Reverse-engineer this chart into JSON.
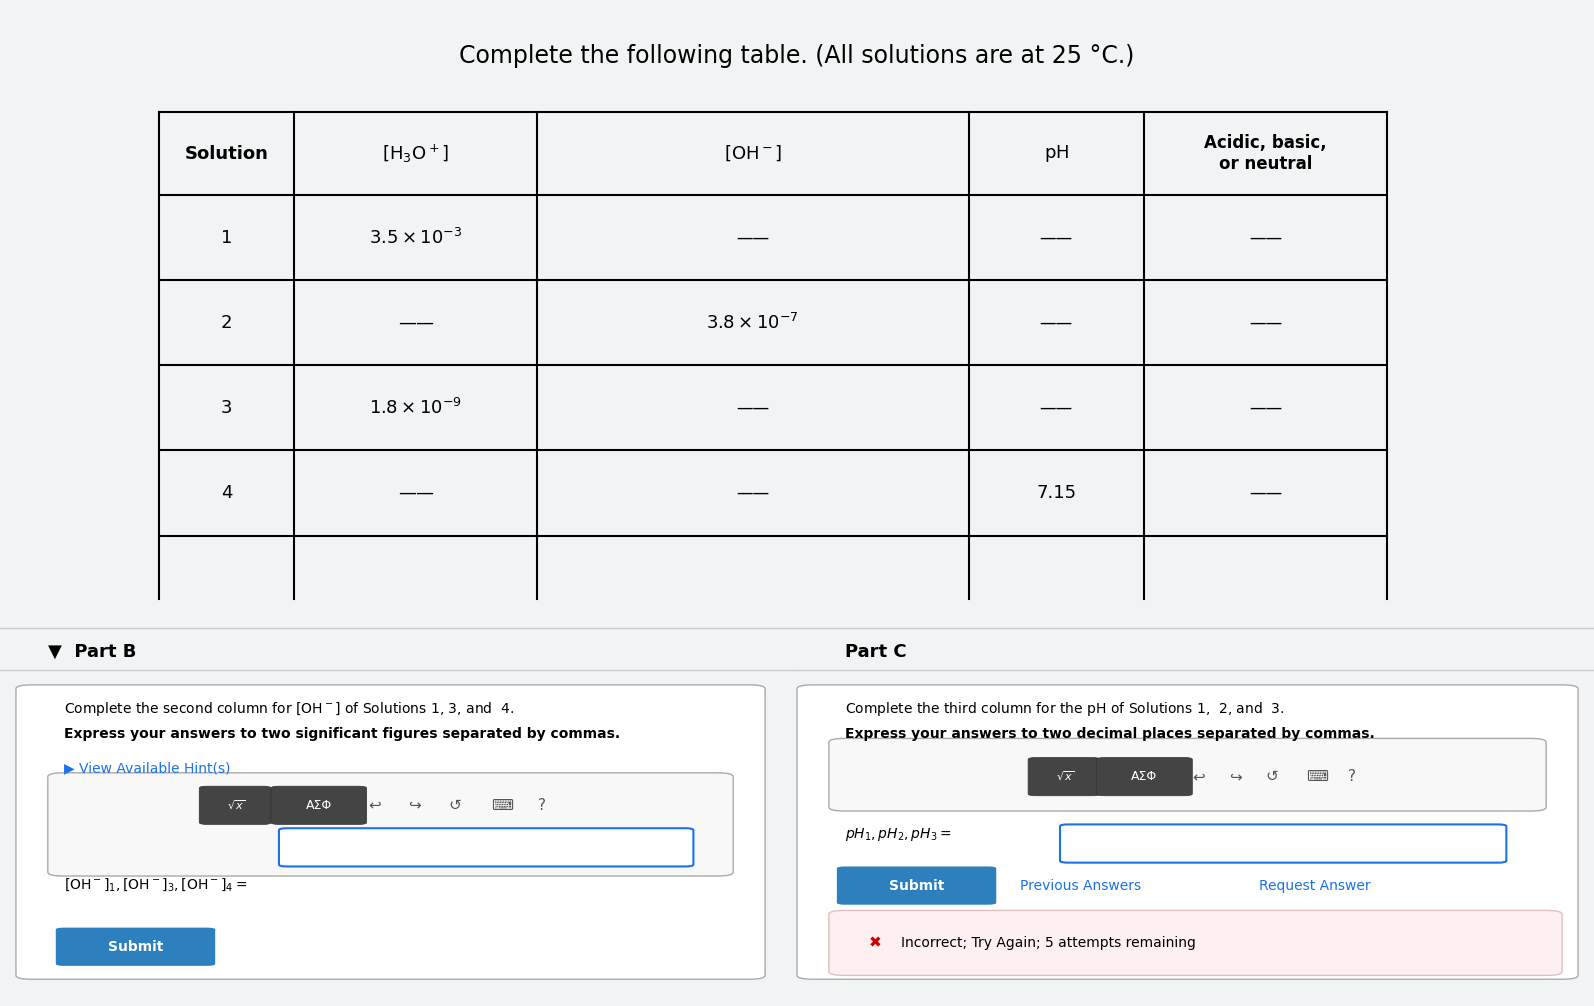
{
  "title": "Complete the following table. (All solutions are at 25 °C.)",
  "title_fontsize": 17,
  "bg_color_top": "#dce9f0",
  "bg_color_bottom": "#f0f0f0",
  "table": {
    "headers": [
      "Solution",
      "[H₃O⁺]",
      "[OH⁻]",
      "pH",
      "Acidic, basic,\nor neutral"
    ],
    "rows": [
      [
        "1",
        "3.5 × 10⁻³",
        "————",
        "————",
        "————"
      ],
      [
        "2",
        "————",
        "3.8 × 10⁻⁷",
        "————",
        "————"
      ],
      [
        "3",
        "1.8 × 10⁻⁹",
        "————",
        "————",
        "————"
      ],
      [
        "4",
        "————",
        "————",
        "7.15",
        "————"
      ]
    ]
  },
  "part_b_title": "Part B",
  "part_b_instruction": "Complete the second column for $\\mathbf{[OH^-]}$ of Solutions 1, 3, and  4.",
  "part_b_bold": "Express your answers to two significant figures separated by commas.",
  "part_b_hint": "▶ View Available Hint(s)",
  "part_b_label": "$[OH^-]_1, [OH^-]_3, [OH^-]_4 =$",
  "part_c_title": "Part C",
  "part_c_instruction": "Complete the third column for the $\\mathbf{pH}$ of Solutions 1,  2, and  3.",
  "part_c_bold": "Express your answers to two decimal places separated by commas.",
  "part_c_label": "$pH_1, pH_2, pH_3 =$",
  "submit_color": "#2e86c1",
  "submit_text": "Submit",
  "prev_answers_text": "Previous Answers",
  "request_answer_text": "Request Answer",
  "error_text": "✖ Incorrect; Try Again; 5 attempts remaining",
  "error_bg": "#fdf0f0"
}
